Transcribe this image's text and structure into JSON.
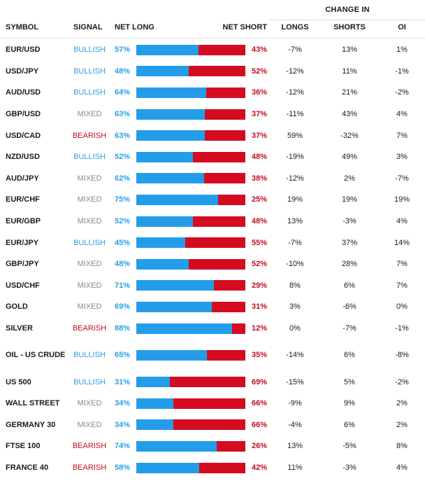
{
  "header": {
    "change_in": "CHANGE IN",
    "symbol": "SYMBOL",
    "signal": "SIGNAL",
    "net_long": "NET LONG",
    "net_short": "NET SHORT",
    "longs": "LONGS",
    "shorts": "SHORTS",
    "oi": "OI"
  },
  "colors": {
    "long_bar": "#239de9",
    "short_bar": "#d50b20",
    "bullish": "#2a9fe4",
    "bearish": "#c60a20",
    "mixed": "#8a8a8a"
  },
  "rows": [
    {
      "symbol": "EUR/USD",
      "signal": "BULLISH",
      "net_long": "57%",
      "net_short": "43%",
      "longs": "-7%",
      "shorts": "13%",
      "oi": "1%",
      "long_fraction": 0.57
    },
    {
      "symbol": "USD/JPY",
      "signal": "BULLISH",
      "net_long": "48%",
      "net_short": "52%",
      "longs": "-12%",
      "shorts": "11%",
      "oi": "-1%",
      "long_fraction": 0.48
    },
    {
      "symbol": "AUD/USD",
      "signal": "BULLISH",
      "net_long": "64%",
      "net_short": "36%",
      "longs": "-12%",
      "shorts": "21%",
      "oi": "-2%",
      "long_fraction": 0.64
    },
    {
      "symbol": "GBP/USD",
      "signal": "MIXED",
      "net_long": "63%",
      "net_short": "37%",
      "longs": "-11%",
      "shorts": "43%",
      "oi": "4%",
      "long_fraction": 0.63
    },
    {
      "symbol": "USD/CAD",
      "signal": "BEARISH",
      "net_long": "63%",
      "net_short": "37%",
      "longs": "59%",
      "shorts": "-32%",
      "oi": "7%",
      "long_fraction": 0.63
    },
    {
      "symbol": "NZD/USD",
      "signal": "BULLISH",
      "net_long": "52%",
      "net_short": "48%",
      "longs": "-19%",
      "shorts": "49%",
      "oi": "3%",
      "long_fraction": 0.52
    },
    {
      "symbol": "AUD/JPY",
      "signal": "MIXED",
      "net_long": "62%",
      "net_short": "38%",
      "longs": "-12%",
      "shorts": "2%",
      "oi": "-7%",
      "long_fraction": 0.62
    },
    {
      "symbol": "EUR/CHF",
      "signal": "MIXED",
      "net_long": "75%",
      "net_short": "25%",
      "longs": "19%",
      "shorts": "19%",
      "oi": "19%",
      "long_fraction": 0.75
    },
    {
      "symbol": "EUR/GBP",
      "signal": "MIXED",
      "net_long": "52%",
      "net_short": "48%",
      "longs": "13%",
      "shorts": "-3%",
      "oi": "4%",
      "long_fraction": 0.52
    },
    {
      "symbol": "EUR/JPY",
      "signal": "BULLISH",
      "net_long": "45%",
      "net_short": "55%",
      "longs": "-7%",
      "shorts": "37%",
      "oi": "14%",
      "long_fraction": 0.45
    },
    {
      "symbol": "GBP/JPY",
      "signal": "MIXED",
      "net_long": "48%",
      "net_short": "52%",
      "longs": "-10%",
      "shorts": "28%",
      "oi": "7%",
      "long_fraction": 0.48
    },
    {
      "symbol": "USD/CHF",
      "signal": "MIXED",
      "net_long": "71%",
      "net_short": "29%",
      "longs": "8%",
      "shorts": "6%",
      "oi": "7%",
      "long_fraction": 0.71
    },
    {
      "symbol": "GOLD",
      "signal": "MIXED",
      "net_long": "69%",
      "net_short": "31%",
      "longs": "3%",
      "shorts": "-6%",
      "oi": "0%",
      "long_fraction": 0.69
    },
    {
      "symbol": "SILVER",
      "signal": "BEARISH",
      "net_long": "88%",
      "net_short": "12%",
      "longs": "0%",
      "shorts": "-7%",
      "oi": "-1%",
      "long_fraction": 0.88
    },
    {
      "symbol": "OIL - US CRUDE",
      "signal": "BULLISH",
      "net_long": "65%",
      "net_short": "35%",
      "longs": "-14%",
      "shorts": "6%",
      "oi": "-8%",
      "long_fraction": 0.65
    },
    {
      "symbol": "US 500",
      "signal": "BULLISH",
      "net_long": "31%",
      "net_short": "69%",
      "longs": "-15%",
      "shorts": "5%",
      "oi": "-2%",
      "long_fraction": 0.31
    },
    {
      "symbol": "WALL STREET",
      "signal": "MIXED",
      "net_long": "34%",
      "net_short": "66%",
      "longs": "-9%",
      "shorts": "9%",
      "oi": "2%",
      "long_fraction": 0.34
    },
    {
      "symbol": "GERMANY 30",
      "signal": "MIXED",
      "net_long": "34%",
      "net_short": "66%",
      "longs": "-4%",
      "shorts": "6%",
      "oi": "2%",
      "long_fraction": 0.34
    },
    {
      "symbol": "FTSE 100",
      "signal": "BEARISH",
      "net_long": "74%",
      "net_short": "26%",
      "longs": "13%",
      "shorts": "-5%",
      "oi": "8%",
      "long_fraction": 0.74
    },
    {
      "symbol": "FRANCE 40",
      "signal": "BEARISH",
      "net_long": "58%",
      "net_short": "42%",
      "longs": "11%",
      "shorts": "-3%",
      "oi": "4%",
      "long_fraction": 0.58
    }
  ]
}
